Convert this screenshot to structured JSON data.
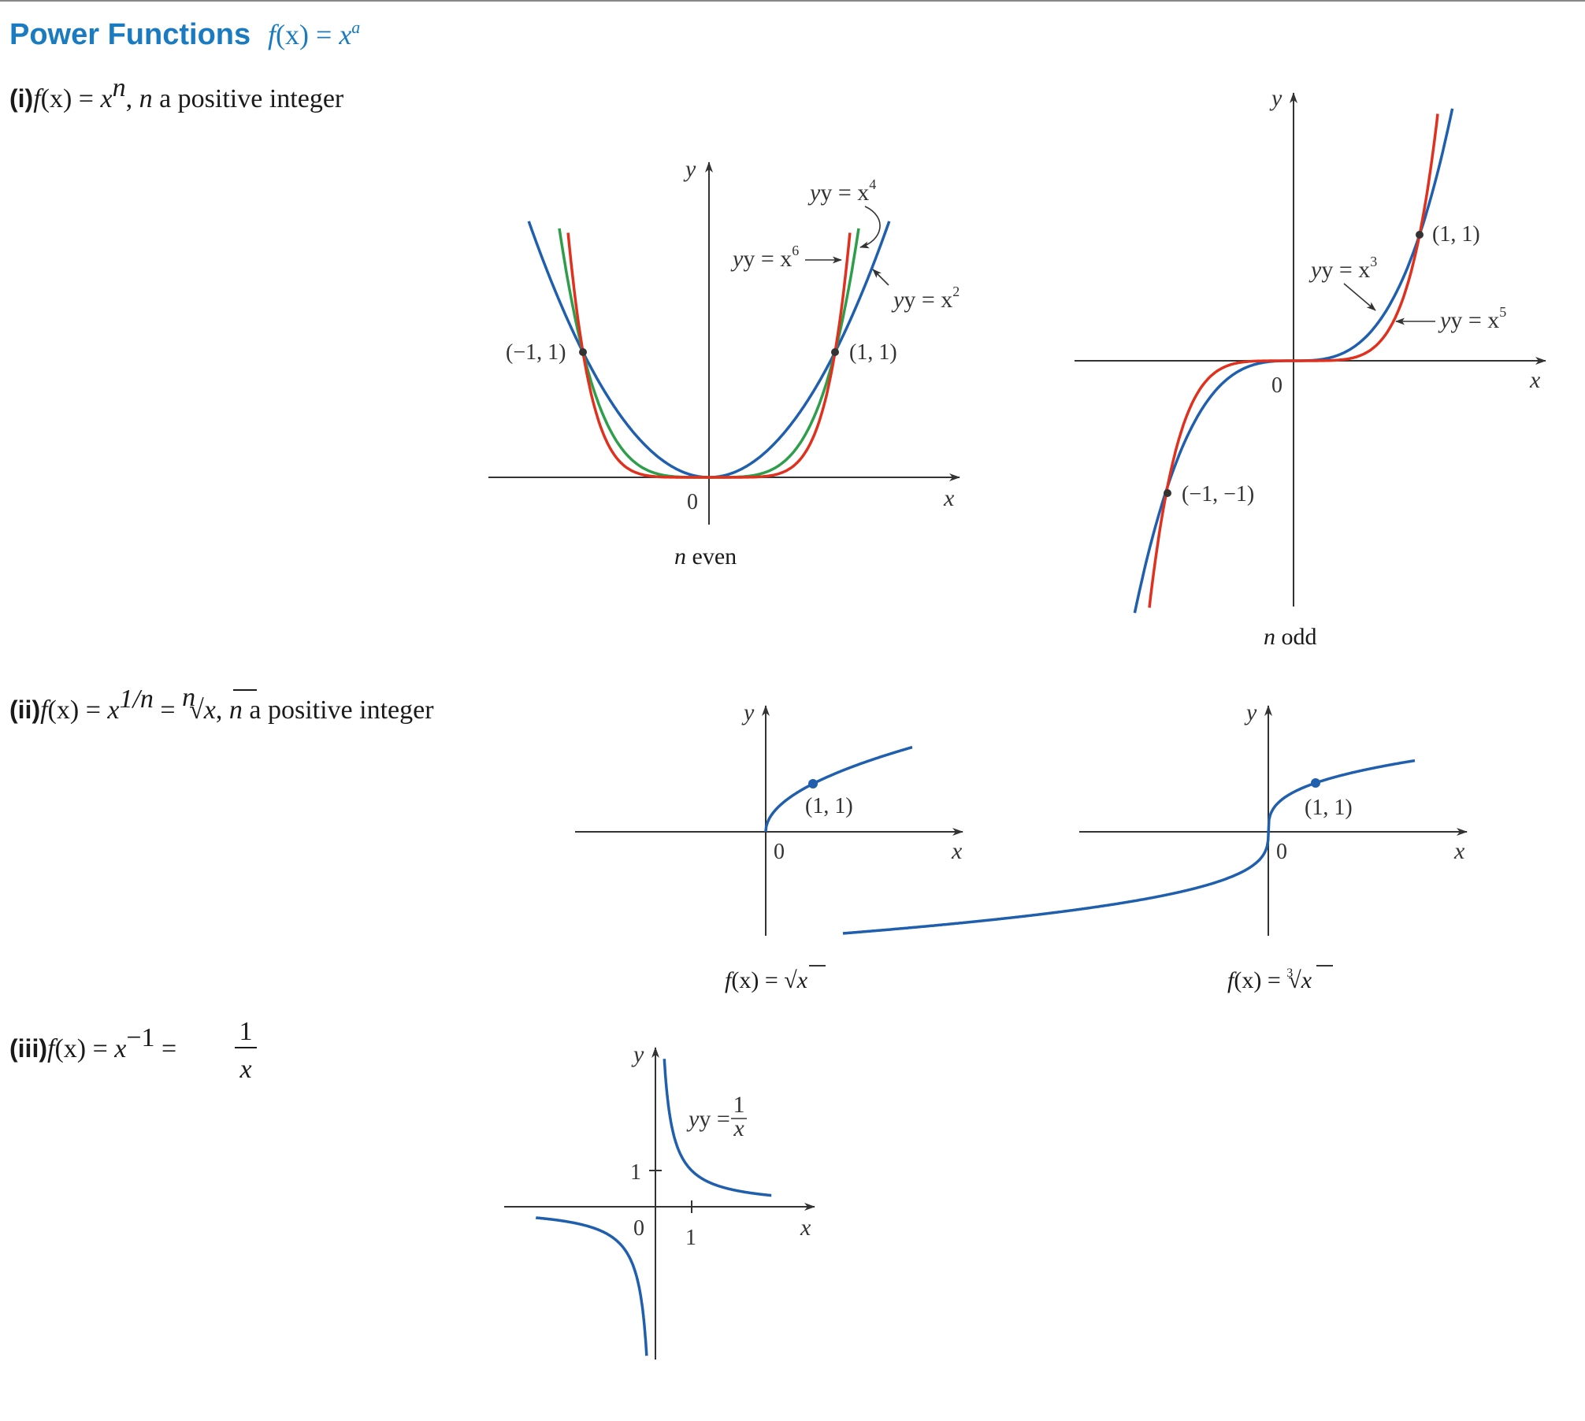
{
  "header": {
    "title": "Power Functions",
    "formula": {
      "f": "f",
      "arg": "(x)",
      "eq": " = ",
      "base": "x",
      "exp": "a"
    }
  },
  "colors": {
    "title_blue": "#1a7bc0",
    "curve_blue": "#1f5fad",
    "curve_red": "#e0301e",
    "curve_green": "#2e9e4a",
    "axis": "#333333"
  },
  "sections": {
    "i": {
      "label": "(i)",
      "text_f": "f",
      "text_fx": "(x) = ",
      "text_x": "x",
      "text_exp": "n",
      "text_tail1": ", ",
      "text_n": "n",
      "text_tail2": " a positive integer"
    },
    "ii": {
      "label": "(ii)",
      "text_f": "f",
      "text_fx": "(x) = ",
      "text_x": "x",
      "text_exp": "1/n",
      "text_eq2": " = ",
      "text_root_index": "n",
      "text_root": "√",
      "text_rx": "x",
      "text_tail1": ", ",
      "text_n": "n",
      "text_tail2": " a positive integer"
    },
    "iii": {
      "label": "(iii)",
      "text_f": "f",
      "text_fx": "(x) = ",
      "text_x": "x",
      "text_exp": "−1",
      "text_eq2": " = ",
      "text_num": "1",
      "text_den": "x"
    }
  },
  "chart_data": [
    {
      "id": "n-even",
      "type": "line",
      "caption_n": "n",
      "caption_rest": " even",
      "x_axis_label": "x",
      "y_axis_label": "y",
      "origin_label": "0",
      "series": [
        {
          "name": "y = x2",
          "name_base": "y = x",
          "name_exp": "2",
          "color": "blue",
          "power": 2
        },
        {
          "name": "y = x4",
          "name_base": "y = x",
          "name_exp": "4",
          "color": "green",
          "power": 4
        },
        {
          "name": "y = x6",
          "name_base": "y = x",
          "name_exp": "6",
          "color": "red",
          "power": 6
        }
      ],
      "points": [
        {
          "x": -1,
          "y": 1,
          "label": "(−1, 1)"
        },
        {
          "x": 1,
          "y": 1,
          "label": "(1, 1)"
        }
      ]
    },
    {
      "id": "n-odd",
      "type": "line",
      "caption_n": "n",
      "caption_rest": " odd",
      "x_axis_label": "x",
      "y_axis_label": "y",
      "origin_label": "0",
      "series": [
        {
          "name": "y = x3",
          "name_base": "y = x",
          "name_exp": "3",
          "color": "blue",
          "power": 3
        },
        {
          "name": "y = x5",
          "name_base": "y = x",
          "name_exp": "5",
          "color": "red",
          "power": 5
        }
      ],
      "points": [
        {
          "x": 1,
          "y": 1,
          "label": "(1, 1)"
        },
        {
          "x": -1,
          "y": -1,
          "label": "(−1, −1)"
        }
      ]
    },
    {
      "id": "sqrt",
      "type": "line",
      "caption_f": "f",
      "caption_fx": "(x) = ",
      "caption_root": "√",
      "caption_x": "x",
      "x_axis_label": "x",
      "y_axis_label": "y",
      "origin_label": "0",
      "series": [
        {
          "function": "x^(1/2)",
          "color": "blue"
        }
      ],
      "points": [
        {
          "x": 1,
          "y": 1,
          "label": "(1, 1)"
        }
      ]
    },
    {
      "id": "cbrt",
      "type": "line",
      "caption_f": "f",
      "caption_fx": "(x) = ",
      "caption_root_index": "3",
      "caption_root": "√",
      "caption_x": "x",
      "x_axis_label": "x",
      "y_axis_label": "y",
      "origin_label": "0",
      "series": [
        {
          "function": "x^(1/3)",
          "color": "blue"
        }
      ],
      "points": [
        {
          "x": 1,
          "y": 1,
          "label": "(1, 1)"
        }
      ]
    },
    {
      "id": "reciprocal",
      "type": "line",
      "x_axis_label": "x",
      "y_axis_label": "y",
      "origin_label": "0",
      "x_tick": "1",
      "y_tick": "1",
      "series": [
        {
          "function": "1/x",
          "color": "blue",
          "label_lhs": "y = ",
          "label_num": "1",
          "label_den": "x"
        }
      ],
      "points": []
    }
  ]
}
